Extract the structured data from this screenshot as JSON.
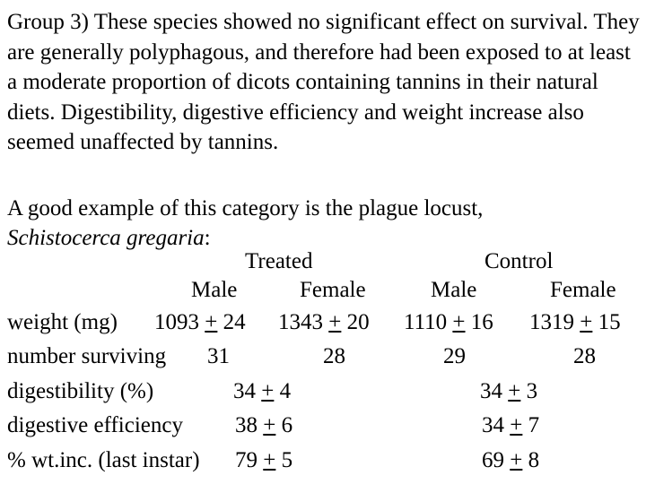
{
  "paragraph1": "Group 3) These species showed no significant effect on survival. They are generally polyphagous, and therefore had been exposed to at least a moderate proportion of dicots containing tannins in their natural diets. Digestibility, digestive efficiency and weight increase also seemed unaffected by tannins.",
  "paragraph2": {
    "text": "A good example of this category is the plague locust,",
    "species": "Schistocerca gregaria",
    "suffix": ":"
  },
  "table": {
    "groups": [
      "Treated",
      "Control"
    ],
    "sexes": [
      "Male",
      "Female",
      "Male",
      "Female"
    ],
    "pm": "+",
    "rows": [
      {
        "label": "weight (mg)",
        "cells": [
          {
            "mean": "1093",
            "se": "24"
          },
          {
            "mean": "1343",
            "se": "20"
          },
          {
            "mean": "1110",
            "se": "16"
          },
          {
            "mean": "1319",
            "se": "15"
          }
        ]
      },
      {
        "label": "number surviving",
        "cells": [
          {
            "value": "31"
          },
          {
            "value": "28"
          },
          {
            "value": "29"
          },
          {
            "value": "28"
          }
        ]
      },
      {
        "label": "digestibility (%)",
        "cells": [
          {
            "mean": "34",
            "se": "4"
          },
          {
            "mean": "34",
            "se": "3"
          }
        ]
      },
      {
        "label": "digestive efficiency",
        "cells": [
          {
            "mean": "38",
            "se": "6"
          },
          {
            "mean": "34",
            "se": "7"
          }
        ]
      },
      {
        "label": "% wt.inc. (last instar)",
        "cells": [
          {
            "mean": "79",
            "se": "5"
          },
          {
            "mean": "69",
            "se": "8"
          }
        ]
      }
    ]
  }
}
